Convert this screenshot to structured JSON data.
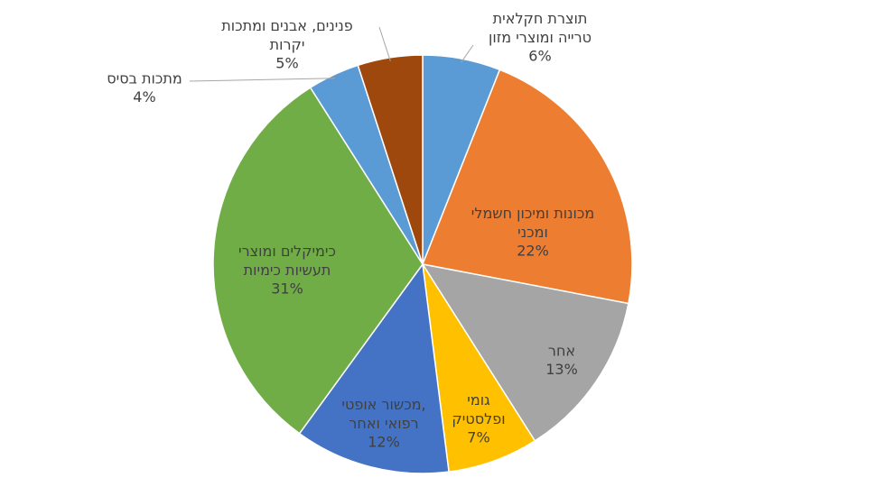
{
  "chart_data": {
    "type": "pie",
    "categories": [
      "תוצרת חקלאית טרייה ומוצרי מזון",
      "מכונות ומיכון חשמלי ומכני",
      "אחר",
      "גומי ופלסטיק",
      "מכשור אופטי, רפואי ואחר",
      "כימיקלים ומוצרי תעשיות כימיות",
      "מתכות בסיס",
      "פנינים, אבנים ומתכות יקרות"
    ],
    "values": [
      6,
      22,
      13,
      7,
      12,
      31,
      4,
      5
    ],
    "value_labels": [
      "6%",
      "22%",
      "13%",
      "7%",
      "12%",
      "31%",
      "4%",
      "5%"
    ],
    "colors": [
      "#5b9bd5",
      "#ed7d31",
      "#a5a5a5",
      "#ffc000",
      "#4472c4",
      "#70ad47",
      "#5b9bd5",
      "#9e480e"
    ]
  }
}
